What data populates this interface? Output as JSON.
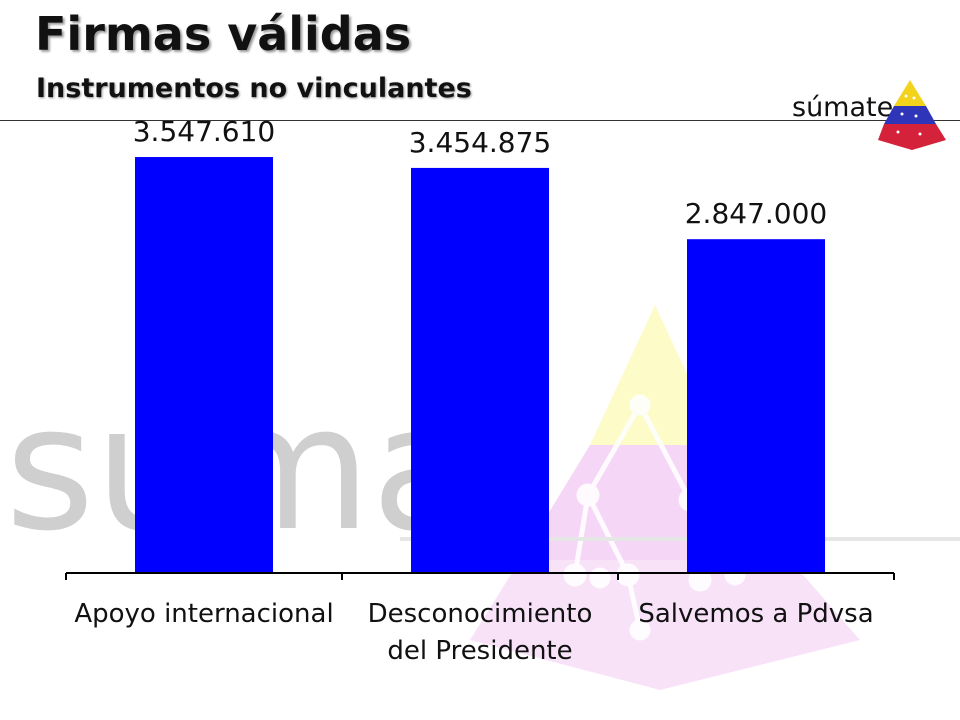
{
  "slide": {
    "title": "Firmas válidas",
    "subtitle": "Instrumentos no vinculantes"
  },
  "logo": {
    "text": "súmate",
    "watermark_text": "súmat",
    "icon": "pyramid-logo-icon"
  },
  "colors": {
    "bar": "#0000ff",
    "watermark_text": "#cfcfcf",
    "pyramid_yellow": "#fdfbc8",
    "pyramid_pink": "#f6d6f6",
    "logo_yellow": "#f3d21d",
    "logo_blue": "#2f35b8",
    "logo_red": "#d4223a"
  },
  "chart_data": {
    "type": "bar",
    "categories": [
      [
        "Apoyo internacional"
      ],
      [
        "Desconocimiento",
        "del Presidente"
      ],
      [
        "Salvemos a Pdvsa"
      ]
    ],
    "values": [
      3547610,
      3454875,
      2847000
    ],
    "value_labels": [
      "3.547.610",
      "3.454.875",
      "2.847.000"
    ],
    "ylim": [
      0,
      4000000
    ],
    "grid": false,
    "legend": "none"
  }
}
